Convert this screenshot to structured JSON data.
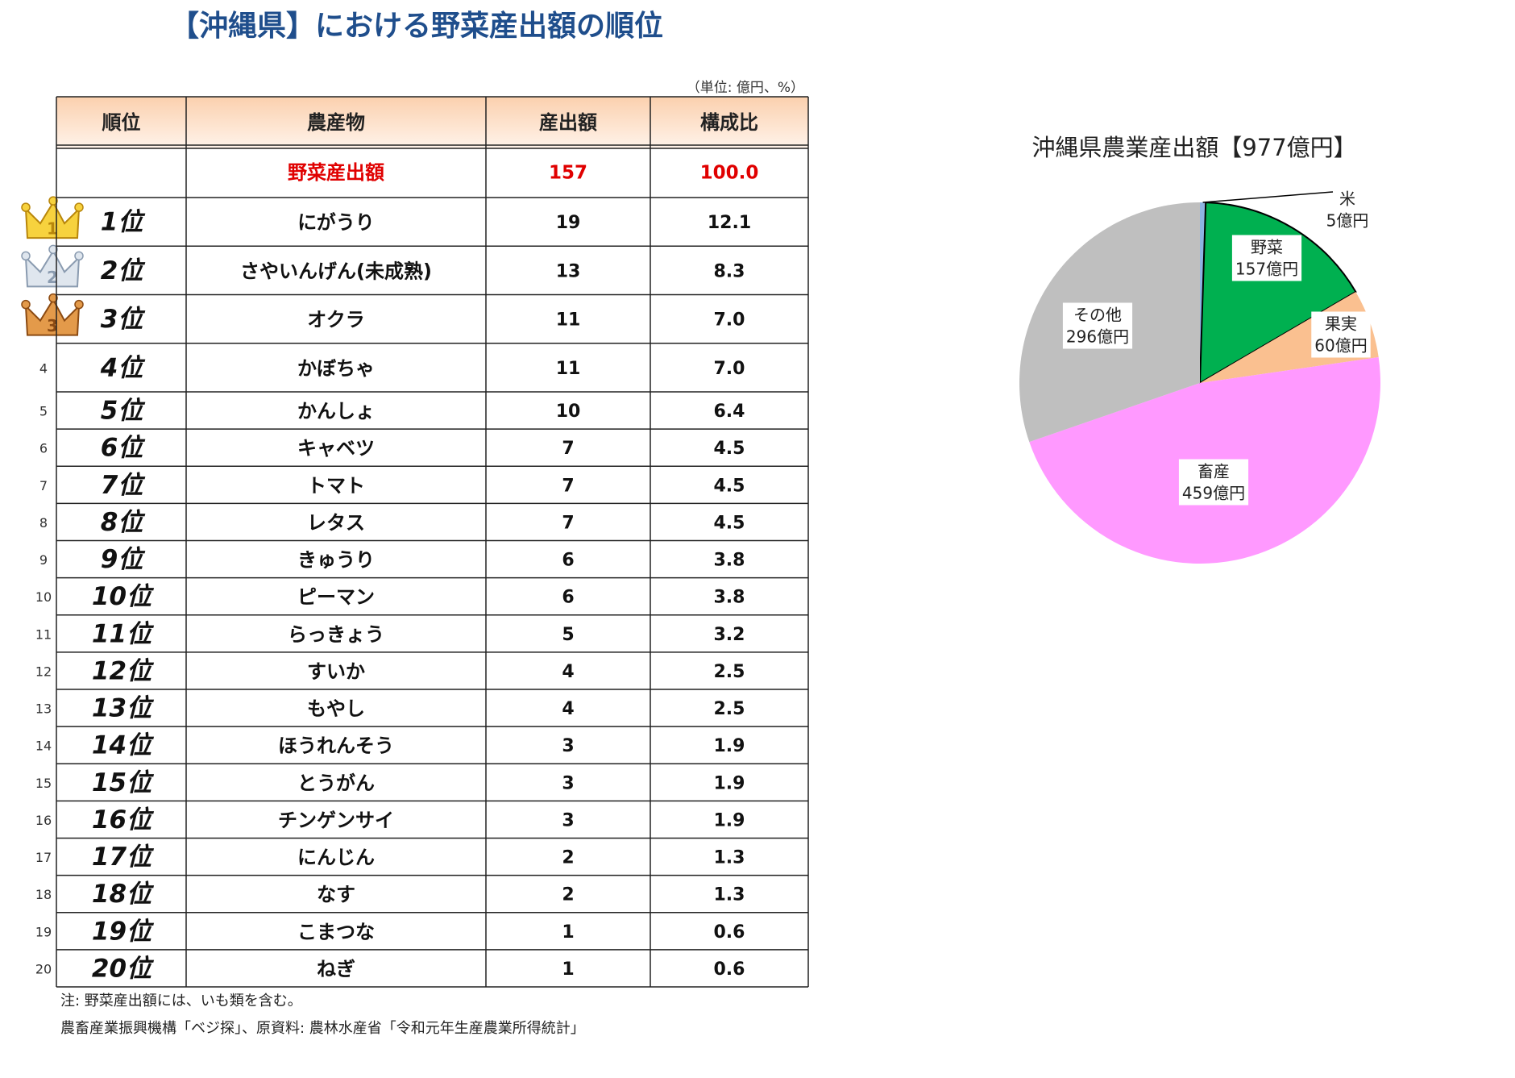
{
  "title": "【沖縄県】における野菜産出額の順位",
  "unit": "（単位: 億円、%）",
  "table": {
    "headers": [
      "順位",
      "農産物",
      "産出額",
      "構成比"
    ],
    "total": {
      "crop": "野菜産出額",
      "value": 157,
      "share": "100.0"
    },
    "rows": [
      {
        "no": 1,
        "rank": "1位",
        "crop": "にがうり",
        "value": 19,
        "share": "12.1"
      },
      {
        "no": 2,
        "rank": "2位",
        "crop": "さやいんげん(未成熟)",
        "value": 13,
        "share": "8.3"
      },
      {
        "no": 3,
        "rank": "3位",
        "crop": "オクラ",
        "value": 11,
        "share": "7.0"
      },
      {
        "no": 4,
        "rank": "4位",
        "crop": "かぼちゃ",
        "value": 11,
        "share": "7.0"
      },
      {
        "no": 5,
        "rank": "5位",
        "crop": "かんしょ",
        "value": 10,
        "share": "6.4"
      },
      {
        "no": 6,
        "rank": "6位",
        "crop": "キャベツ",
        "value": 7,
        "share": "4.5"
      },
      {
        "no": 7,
        "rank": "7位",
        "crop": "トマト",
        "value": 7,
        "share": "4.5"
      },
      {
        "no": 8,
        "rank": "8位",
        "crop": "レタス",
        "value": 7,
        "share": "4.5"
      },
      {
        "no": 9,
        "rank": "9位",
        "crop": "きゅうり",
        "value": 6,
        "share": "3.8"
      },
      {
        "no": 10,
        "rank": "10位",
        "crop": "ピーマン",
        "value": 6,
        "share": "3.8"
      },
      {
        "no": 11,
        "rank": "11位",
        "crop": "らっきょう",
        "value": 5,
        "share": "3.2"
      },
      {
        "no": 12,
        "rank": "12位",
        "crop": "すいか",
        "value": 4,
        "share": "2.5"
      },
      {
        "no": 13,
        "rank": "13位",
        "crop": "もやし",
        "value": 4,
        "share": "2.5"
      },
      {
        "no": 14,
        "rank": "14位",
        "crop": "ほうれんそう",
        "value": 3,
        "share": "1.9"
      },
      {
        "no": 15,
        "rank": "15位",
        "crop": "とうがん",
        "value": 3,
        "share": "1.9"
      },
      {
        "no": 16,
        "rank": "16位",
        "crop": "チンゲンサイ",
        "value": 3,
        "share": "1.9"
      },
      {
        "no": 17,
        "rank": "17位",
        "crop": "にんじん",
        "value": 2,
        "share": "1.3"
      },
      {
        "no": 18,
        "rank": "18位",
        "crop": "なす",
        "value": 2,
        "share": "1.3"
      },
      {
        "no": 19,
        "rank": "19位",
        "crop": "こまつな",
        "value": 1,
        "share": "0.6"
      },
      {
        "no": 20,
        "rank": "20位",
        "crop": "ねぎ",
        "value": 1,
        "share": "0.6"
      }
    ]
  },
  "notes": [
    "注: 野菜産出額には、いも類を含む。",
    "農畜産業振興機構「ベジ探」、原資料: 農林水産省「令和元年生産農業所得統計」"
  ],
  "chart_data": {
    "type": "pie",
    "title": "沖縄県農業産出額【977億円】",
    "categories": [
      "米",
      "野菜",
      "果実",
      "畜産",
      "その他"
    ],
    "values": [
      5,
      157,
      60,
      459,
      296
    ],
    "value_labels": [
      "5億円",
      "157億円",
      "60億円",
      "459億円",
      "296億円"
    ],
    "colors": [
      "#8db4e2",
      "#00b050",
      "#fac090",
      "#ff99ff",
      "#bfbfbf"
    ]
  }
}
